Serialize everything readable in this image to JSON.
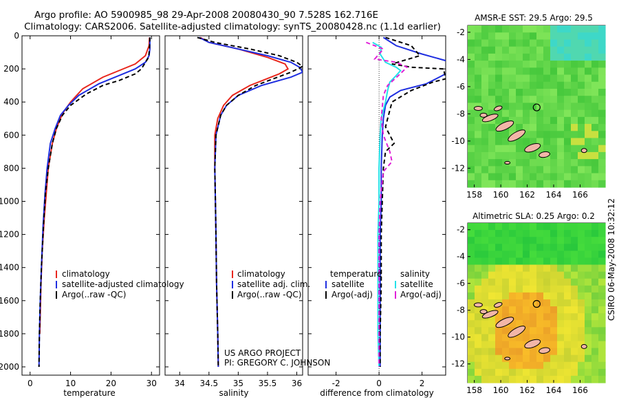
{
  "header": {
    "title_line1": "Argo profile: AO 5900985_98 29-Apr-2008 20080430_90 7.528S 162.716E",
    "title_line2": "Climatology: CARS2006. Satellite-adjusted climatology: synTS_20080428.nc (1.1d earlier)"
  },
  "side_label": "CSIRO 06-May-2008 10:32:12",
  "credit": {
    "line1": "US ARGO PROJECT",
    "line2": "PI: GREGORY C. JOHNSON"
  },
  "colors": {
    "climatology": "#e8261c",
    "satellite": "#1e2ee0",
    "argo": "#000000",
    "sat_salinity": "#22e0e8",
    "argo_salinity": "#e020d8",
    "map_ocean": "#2fd04a",
    "island": "#f2b6a8"
  },
  "chart_data": [
    {
      "id": "temperature",
      "type": "line",
      "xlabel": "temperature",
      "xlim": [
        -2,
        32
      ],
      "ylim": [
        2050,
        0
      ],
      "xticks": [
        0,
        10,
        20,
        30
      ],
      "yticks": [
        0,
        200,
        400,
        600,
        800,
        1000,
        1200,
        1400,
        1600,
        1800,
        2000
      ],
      "legend": [
        "climatology",
        "satellite-adjusted climatology",
        "Argo(..raw -QC)"
      ],
      "series": [
        {
          "name": "climatology",
          "points": [
            [
              29.5,
              10
            ],
            [
              29.4,
              60
            ],
            [
              28.5,
              120
            ],
            [
              26,
              170
            ],
            [
              22,
              210
            ],
            [
              18,
              250
            ],
            [
              13,
              320
            ],
            [
              10,
              400
            ],
            [
              8,
              470
            ],
            [
              6.5,
              560
            ],
            [
              5.5,
              650
            ],
            [
              4.5,
              800
            ],
            [
              4,
              950
            ],
            [
              3.5,
              1100
            ],
            [
              3,
              1300
            ],
            [
              2.7,
              1500
            ],
            [
              2.4,
              1800
            ]
          ]
        },
        {
          "name": "satellite-adjusted climatology",
          "points": [
            [
              29.6,
              10
            ],
            [
              29.6,
              80
            ],
            [
              29.4,
              120
            ],
            [
              28.5,
              160
            ],
            [
              26,
              200
            ],
            [
              22,
              240
            ],
            [
              17,
              290
            ],
            [
              12,
              360
            ],
            [
              9.5,
              420
            ],
            [
              7.5,
              480
            ],
            [
              6.2,
              560
            ],
            [
              5,
              650
            ],
            [
              4.2,
              800
            ],
            [
              3.7,
              950
            ],
            [
              3.2,
              1150
            ],
            [
              2.8,
              1400
            ],
            [
              2.5,
              1600
            ],
            [
              2.3,
              1800
            ],
            [
              2.2,
              2000
            ]
          ]
        },
        {
          "name": "Argo(..raw -QC)",
          "points": [
            [
              29.6,
              10
            ],
            [
              29.5,
              80
            ],
            [
              29.3,
              130
            ],
            [
              28,
              180
            ],
            [
              27.5,
              200
            ],
            [
              26,
              230
            ],
            [
              22,
              270
            ],
            [
              18,
              300
            ],
            [
              14,
              350
            ],
            [
              10,
              420
            ],
            [
              8,
              480
            ],
            [
              6.5,
              560
            ],
            [
              5.5,
              650
            ],
            [
              4.5,
              800
            ],
            [
              3.8,
              950
            ],
            [
              3.3,
              1150
            ],
            [
              2.8,
              1400
            ],
            [
              2.5,
              1600
            ],
            [
              2.3,
              1800
            ],
            [
              2.2,
              2000
            ]
          ]
        }
      ]
    },
    {
      "id": "salinity",
      "type": "line",
      "xlabel": "salinity",
      "xlim": [
        33.75,
        36.1
      ],
      "ylim": [
        2050,
        0
      ],
      "xticks": [
        34,
        34.5,
        35,
        35.5,
        36
      ],
      "legend": [
        "climatology",
        "satellite adj. clim.",
        "Argo(..raw -QC)"
      ],
      "series": [
        {
          "name": "climatology",
          "points": [
            [
              34.35,
              10
            ],
            [
              34.5,
              40
            ],
            [
              35,
              80
            ],
            [
              35.5,
              130
            ],
            [
              35.8,
              170
            ],
            [
              35.85,
              200
            ],
            [
              35.7,
              230
            ],
            [
              35.2,
              300
            ],
            [
              34.9,
              360
            ],
            [
              34.75,
              420
            ],
            [
              34.65,
              500
            ],
            [
              34.6,
              600
            ],
            [
              34.6,
              800
            ],
            [
              34.61,
              1000
            ],
            [
              34.62,
              1200
            ],
            [
              34.63,
              1500
            ],
            [
              34.65,
              1800
            ],
            [
              34.66,
              2000
            ]
          ]
        },
        {
          "name": "satellite adj. clim.",
          "points": [
            [
              34.33,
              10
            ],
            [
              34.5,
              40
            ],
            [
              35,
              80
            ],
            [
              35.5,
              120
            ],
            [
              35.9,
              160
            ],
            [
              36.05,
              190
            ],
            [
              36.1,
              220
            ],
            [
              35.9,
              250
            ],
            [
              35.4,
              300
            ],
            [
              35.0,
              360
            ],
            [
              34.8,
              420
            ],
            [
              34.7,
              480
            ],
            [
              34.62,
              600
            ],
            [
              34.6,
              800
            ],
            [
              34.61,
              1000
            ],
            [
              34.62,
              1200
            ],
            [
              34.63,
              1500
            ],
            [
              34.65,
              1800
            ],
            [
              34.66,
              2000
            ]
          ]
        },
        {
          "name": "Argo(..raw -QC)",
          "points": [
            [
              34.3,
              10
            ],
            [
              34.6,
              40
            ],
            [
              35.2,
              80
            ],
            [
              35.7,
              120
            ],
            [
              36.0,
              160
            ],
            [
              36.1,
              185
            ],
            [
              35.9,
              220
            ],
            [
              35.6,
              260
            ],
            [
              35.3,
              300
            ],
            [
              35.0,
              360
            ],
            [
              34.8,
              420
            ],
            [
              34.7,
              480
            ],
            [
              34.62,
              600
            ],
            [
              34.6,
              800
            ],
            [
              34.61,
              1000
            ],
            [
              34.62,
              1200
            ],
            [
              34.63,
              1500
            ],
            [
              34.65,
              1800
            ],
            [
              34.66,
              2000
            ]
          ]
        }
      ]
    },
    {
      "id": "difference",
      "type": "line",
      "xlabel": "difference from climatology",
      "xlim": [
        -3.3,
        3.1
      ],
      "ylim": [
        2050,
        0
      ],
      "xticks": [
        -2,
        0,
        2
      ],
      "legend_temperature_title": "temperature",
      "legend_salinity_title": "salinity",
      "legend_temperature": [
        "satellite",
        "Argo(-adj)"
      ],
      "legend_salinity": [
        "satellite",
        "Argo(-adj)"
      ],
      "series": [
        {
          "name": "temperature satellite",
          "points": [
            [
              0.2,
              10
            ],
            [
              0.8,
              60
            ],
            [
              2,
              110
            ],
            [
              3.1,
              150
            ]
          ]
        },
        {
          "name": "temperature satellite (lower)",
          "points": [
            [
              3.1,
              230
            ],
            [
              2.2,
              290
            ],
            [
              1,
              330
            ],
            [
              0.5,
              370
            ],
            [
              0.3,
              420
            ],
            [
              0.2,
              500
            ],
            [
              0.15,
              600
            ],
            [
              0.1,
              800
            ],
            [
              0.1,
              1000
            ],
            [
              0.05,
              1200
            ],
            [
              0.05,
              1500
            ],
            [
              0.05,
              1800
            ],
            [
              0.05,
              2000
            ]
          ]
        },
        {
          "name": "Argo(-adj)",
          "points": [
            [
              0.3,
              10
            ],
            [
              1.5,
              60
            ],
            [
              1.9,
              120
            ],
            [
              0.6,
              170
            ],
            [
              1.5,
              190
            ],
            [
              3,
              200
            ],
            [
              3.1,
              260
            ],
            [
              2.5,
              280
            ],
            [
              1.5,
              330
            ],
            [
              0.6,
              400
            ],
            [
              0.5,
              450
            ],
            [
              0.4,
              500
            ],
            [
              0.3,
              550
            ],
            [
              0.7,
              650
            ],
            [
              0.3,
              700
            ],
            [
              0.2,
              800
            ],
            [
              0.15,
              1000
            ],
            [
              0.1,
              1200
            ],
            [
              0.1,
              1500
            ],
            [
              0.05,
              1800
            ],
            [
              0.05,
              2000
            ]
          ]
        },
        {
          "name": "salinity satellite",
          "points": [
            [
              -0.3,
              40
            ],
            [
              0.1,
              70
            ],
            [
              0.05,
              110
            ],
            [
              0.3,
              160
            ],
            [
              0.8,
              190
            ],
            [
              1,
              210
            ],
            [
              0.8,
              240
            ],
            [
              0.5,
              280
            ],
            [
              0.4,
              330
            ],
            [
              0.3,
              400
            ],
            [
              0.1,
              500
            ],
            [
              0.05,
              600
            ],
            [
              0,
              800
            ],
            [
              0,
              1000
            ],
            [
              -0.05,
              1200
            ],
            [
              -0.05,
              1500
            ],
            [
              -0.05,
              1800
            ],
            [
              0,
              2000
            ]
          ]
        },
        {
          "name": "salinity Argo(-adj)",
          "points": [
            [
              -0.6,
              40
            ],
            [
              0.2,
              80
            ],
            [
              -0.2,
              140
            ],
            [
              0.8,
              160
            ],
            [
              1.3,
              190
            ],
            [
              0.9,
              240
            ],
            [
              0.4,
              300
            ],
            [
              0.2,
              360
            ],
            [
              0.1,
              500
            ],
            [
              0.2,
              600
            ],
            [
              0.5,
              700
            ],
            [
              0.6,
              760
            ],
            [
              0.2,
              820
            ],
            [
              0.05,
              1000
            ],
            [
              0,
              1200
            ],
            [
              0,
              1500
            ],
            [
              0,
              1800
            ],
            [
              0,
              2000
            ]
          ]
        }
      ]
    }
  ],
  "maps": [
    {
      "id": "sst-map",
      "title": "AMSR-E SST: 29.5 Argo: 29.5",
      "xticks": [
        "158",
        "160",
        "162",
        "164",
        "166"
      ],
      "yticks": [
        "-2",
        "-4",
        "-6",
        "-8",
        "-10",
        "-12"
      ],
      "argo_position": [
        162.716,
        -7.528
      ]
    },
    {
      "id": "sla-map",
      "title": "Altimetric SLA: 0.25 Argo: 0.2",
      "xticks": [
        "158",
        "160",
        "162",
        "164",
        "166"
      ],
      "yticks": [
        "-2",
        "-4",
        "-6",
        "-8",
        "-10",
        "-12"
      ],
      "argo_position": [
        162.716,
        -7.528
      ]
    }
  ]
}
